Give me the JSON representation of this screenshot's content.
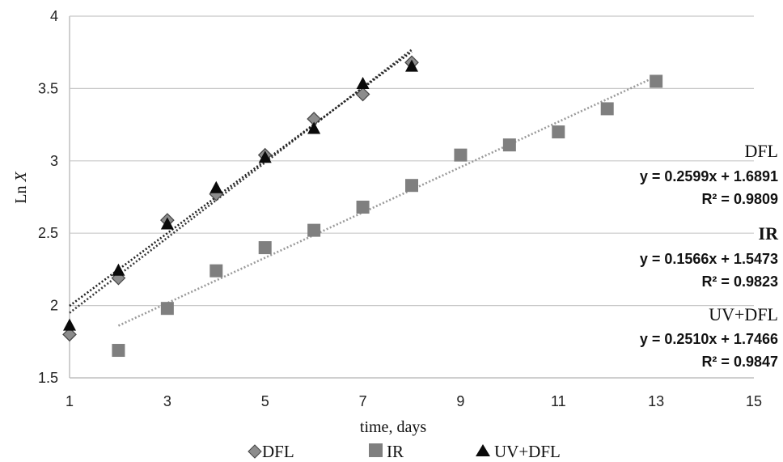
{
  "chart_data": {
    "type": "scatter",
    "xlabel": "time, days",
    "ylabel_prefix": "Ln",
    "ylabel_var": "X",
    "xlim": [
      1,
      15
    ],
    "ylim": [
      1.5,
      4
    ],
    "x_ticks": [
      1,
      3,
      5,
      7,
      9,
      11,
      13,
      15
    ],
    "y_ticks": [
      1.5,
      2,
      2.5,
      3,
      3.5,
      4
    ],
    "y_grid": true,
    "legend_position": "bottom",
    "series": [
      {
        "name": "DFL",
        "marker": "diamond",
        "color": "#8c8c8c",
        "x": [
          1,
          2,
          3,
          4,
          5,
          6,
          7,
          8
        ],
        "y": [
          1.8,
          2.19,
          2.59,
          2.77,
          3.04,
          3.29,
          3.46,
          3.68
        ],
        "trendline": {
          "x_range": [
            1,
            8
          ],
          "slope": 0.2599,
          "intercept": 1.6891,
          "color": "#3a3a3a"
        }
      },
      {
        "name": "IR",
        "marker": "square",
        "color": "#7f7f7f",
        "x": [
          2,
          3,
          4,
          5,
          6,
          7,
          8,
          9,
          10,
          11,
          12,
          13
        ],
        "y": [
          1.69,
          1.98,
          2.24,
          2.4,
          2.52,
          2.68,
          2.83,
          3.04,
          3.11,
          3.2,
          3.36,
          3.55
        ],
        "trendline": {
          "x_range": [
            2,
            13
          ],
          "slope": 0.1566,
          "intercept": 1.5473,
          "color": "#9a9a9a"
        }
      },
      {
        "name": "UV+DFL",
        "marker": "triangle",
        "color": "#0a0a0a",
        "x": [
          1,
          2,
          3,
          4,
          5,
          6,
          7,
          8
        ],
        "y": [
          1.86,
          2.24,
          2.56,
          2.81,
          3.02,
          3.22,
          3.53,
          3.65
        ],
        "trendline": {
          "x_range": [
            1,
            8
          ],
          "slope": 0.251,
          "intercept": 1.7466,
          "color": "#222222"
        }
      }
    ],
    "annotations": [
      {
        "name": "DFL",
        "equation": "y = 0.2599x + 1.6891",
        "r2": "R² = 0.9809"
      },
      {
        "name": "IR",
        "equation": "y = 0.1566x + 1.5473",
        "r2": "R² = 0.9823"
      },
      {
        "name": "UV+DFL",
        "equation": "y = 0.2510x + 1.7466",
        "r2": "R² = 0.9847"
      }
    ],
    "legend": [
      "DFL",
      "IR",
      "UV+DFL"
    ]
  }
}
